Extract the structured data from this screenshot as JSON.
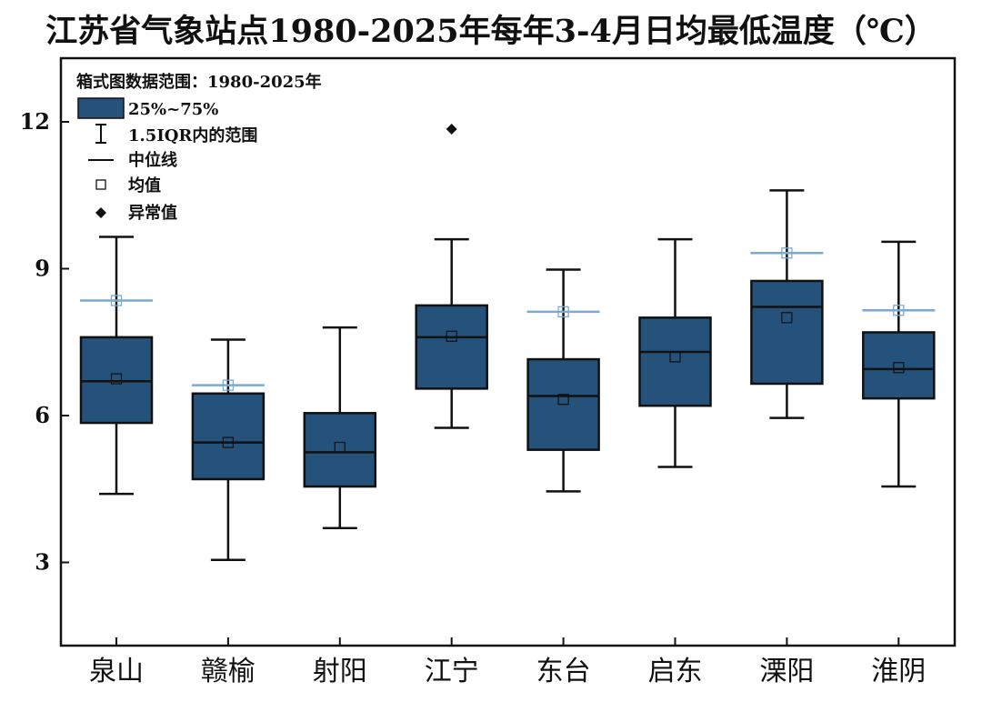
{
  "chart_data": {
    "type": "box",
    "title": "江苏省气象站点1980-2025年每年3-4月日均最低温度（℃）",
    "categories": [
      "泉山",
      "赣榆",
      "射阳",
      "江宁",
      "东台",
      "启东",
      "溧阳",
      "淮阴"
    ],
    "ylim": [
      1.3,
      13.3
    ],
    "yticks": [
      3,
      6,
      9,
      12
    ],
    "grid": false,
    "legend_position": "top-left",
    "legend": {
      "header": "箱式图数据范围：1980-2025年",
      "box_label": "25%~75%",
      "whisker_label": "1.5IQR内的范围",
      "median_label": "中位线",
      "mean_label": "均值",
      "outlier_label": "异常值"
    },
    "box_color": "#24527a",
    "line_color": "#111111",
    "highlight_color": "#7aaad4",
    "series": [
      {
        "whisker_low": 4.4,
        "q1": 5.85,
        "median": 6.7,
        "q3": 7.6,
        "whisker_high": 9.65,
        "mean": 6.75,
        "highlight": 8.35,
        "outliers": []
      },
      {
        "whisker_low": 3.05,
        "q1": 4.7,
        "median": 5.45,
        "q3": 6.45,
        "whisker_high": 7.55,
        "mean": 5.45,
        "highlight": 6.62,
        "outliers": []
      },
      {
        "whisker_low": 3.7,
        "q1": 4.55,
        "median": 5.25,
        "q3": 6.05,
        "whisker_high": 7.8,
        "mean": 5.35,
        "highlight": null,
        "outliers": []
      },
      {
        "whisker_low": 5.75,
        "q1": 6.55,
        "median": 7.6,
        "q3": 8.25,
        "whisker_high": 9.6,
        "mean": 7.62,
        "highlight": null,
        "outliers": [
          11.85
        ]
      },
      {
        "whisker_low": 4.45,
        "q1": 5.3,
        "median": 6.4,
        "q3": 7.15,
        "whisker_high": 8.98,
        "mean": 6.33,
        "highlight": 8.12,
        "outliers": []
      },
      {
        "whisker_low": 4.95,
        "q1": 6.2,
        "median": 7.3,
        "q3": 8.0,
        "whisker_high": 9.6,
        "mean": 7.2,
        "highlight": null,
        "outliers": []
      },
      {
        "whisker_low": 5.95,
        "q1": 6.65,
        "median": 8.22,
        "q3": 8.75,
        "whisker_high": 10.6,
        "mean": 8.0,
        "highlight": 9.32,
        "outliers": []
      },
      {
        "whisker_low": 4.55,
        "q1": 6.35,
        "median": 6.95,
        "q3": 7.7,
        "whisker_high": 9.55,
        "mean": 6.98,
        "highlight": 8.15,
        "outliers": []
      }
    ]
  }
}
